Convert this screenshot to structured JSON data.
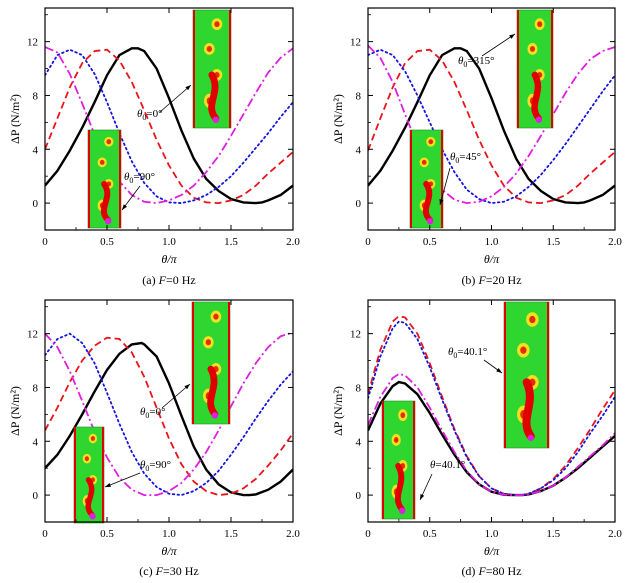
{
  "colors": {
    "black_solid": "#000000",
    "red_dash": "#e8141a",
    "blue_dot": "#1414e0",
    "magenta_dashdot": "#e01ee0",
    "inset_green": "#2fd62f",
    "inset_red": "#e00000",
    "inset_yellow": "#f0e020"
  },
  "chart_data": [
    {
      "type": "line",
      "caption": "(a) F=0 Hz",
      "xlabel": "θ/π",
      "ylabel": "ΔP (N/m²)",
      "xlim": [
        0,
        2
      ],
      "ylim": [
        -2,
        14.5
      ],
      "xticks": [
        "0",
        "0.5",
        "1.0",
        "1.5",
        "2.0"
      ],
      "yticks": [
        "0",
        "4",
        "8",
        "12"
      ],
      "annotations": [
        "θ0=0°",
        "θ0=90°"
      ],
      "series": [
        {
          "style": "solid",
          "color": "#000000",
          "x": [
            0,
            0.1,
            0.2,
            0.3,
            0.4,
            0.5,
            0.6,
            0.7,
            0.75,
            0.8,
            0.9,
            1.0,
            1.1,
            1.2,
            1.3,
            1.4,
            1.5,
            1.6,
            1.7,
            1.75,
            1.8,
            1.9,
            2.0
          ],
          "y": [
            1.3,
            2.4,
            3.9,
            5.6,
            7.5,
            9.5,
            11.0,
            11.5,
            11.5,
            11.3,
            10.0,
            7.8,
            5.4,
            3.3,
            1.8,
            0.9,
            0.3,
            0.05,
            0,
            0.05,
            0.2,
            0.6,
            1.3
          ]
        },
        {
          "style": "dashed",
          "color": "#e8141a",
          "x": [
            0,
            0.1,
            0.2,
            0.3,
            0.4,
            0.5,
            0.6,
            0.7,
            0.8,
            0.9,
            1.0,
            1.1,
            1.2,
            1.3,
            1.4,
            1.5,
            1.6,
            1.7,
            1.8,
            1.9,
            2.0
          ],
          "y": [
            4.0,
            6.3,
            8.6,
            10.4,
            11.3,
            11.4,
            10.6,
            9.0,
            6.9,
            4.7,
            2.8,
            1.3,
            0.4,
            0.05,
            0,
            0.2,
            0.6,
            1.3,
            2.2,
            3.0,
            3.8
          ]
        },
        {
          "style": "dotted",
          "color": "#1414e0",
          "x": [
            0,
            0.1,
            0.2,
            0.3,
            0.4,
            0.5,
            0.6,
            0.7,
            0.8,
            0.9,
            1.0,
            1.1,
            1.2,
            1.3,
            1.4,
            1.5,
            1.6,
            1.7,
            1.8,
            1.9,
            2.0
          ],
          "y": [
            9.5,
            11.0,
            11.4,
            11.0,
            9.6,
            7.5,
            5.2,
            3.1,
            1.5,
            0.5,
            0.05,
            0,
            0.2,
            0.6,
            1.2,
            2.0,
            3.0,
            4.1,
            5.2,
            6.4,
            7.5
          ]
        },
        {
          "style": "dashdot",
          "color": "#e01ee0",
          "x": [
            0,
            0.1,
            0.2,
            0.3,
            0.4,
            0.5,
            0.6,
            0.7,
            0.8,
            0.9,
            1.0,
            1.1,
            1.2,
            1.3,
            1.4,
            1.5,
            1.6,
            1.7,
            1.8,
            1.9,
            2.0
          ],
          "y": [
            11.6,
            11.2,
            9.6,
            7.4,
            5.1,
            3.1,
            1.6,
            0.6,
            0.1,
            0,
            0.2,
            0.6,
            1.3,
            2.3,
            3.5,
            5.0,
            6.6,
            8.2,
            9.7,
            10.8,
            11.5
          ]
        }
      ]
    },
    {
      "type": "line",
      "caption": "(b) F=20 Hz",
      "xlabel": "θ/π",
      "ylabel": "ΔP (N/m²)",
      "xlim": [
        0,
        2
      ],
      "ylim": [
        -2,
        14.5
      ],
      "xticks": [
        "0",
        "0.5",
        "1.0",
        "1.5",
        "2.0"
      ],
      "yticks": [
        "0",
        "4",
        "8",
        "12"
      ],
      "annotations": [
        "θ0=315°",
        "θ0=45°"
      ],
      "series": [
        {
          "style": "solid",
          "color": "#000000",
          "x": [
            0,
            0.1,
            0.2,
            0.3,
            0.4,
            0.5,
            0.6,
            0.7,
            0.75,
            0.8,
            0.9,
            1.0,
            1.1,
            1.2,
            1.3,
            1.4,
            1.5,
            1.6,
            1.7,
            1.75,
            1.8,
            1.9,
            2.0
          ],
          "y": [
            1.3,
            2.4,
            3.9,
            5.6,
            7.5,
            9.5,
            11.0,
            11.5,
            11.5,
            11.3,
            10.0,
            7.8,
            5.4,
            3.3,
            1.8,
            0.9,
            0.3,
            0.05,
            0,
            0.05,
            0.2,
            0.6,
            1.3
          ]
        },
        {
          "style": "dashed",
          "color": "#e8141a",
          "x": [
            0,
            0.1,
            0.2,
            0.3,
            0.4,
            0.5,
            0.6,
            0.7,
            0.8,
            0.9,
            1.0,
            1.1,
            1.2,
            1.3,
            1.4,
            1.5,
            1.6,
            1.7,
            1.8,
            1.9,
            2.0
          ],
          "y": [
            3.9,
            6.3,
            8.6,
            10.4,
            11.3,
            11.4,
            10.6,
            9.0,
            6.9,
            4.7,
            2.8,
            1.3,
            0.4,
            0.05,
            0,
            0.2,
            0.6,
            1.3,
            2.2,
            3.0,
            3.8
          ]
        },
        {
          "style": "dotted",
          "color": "#1414e0",
          "x": [
            0,
            0.1,
            0.2,
            0.3,
            0.4,
            0.5,
            0.6,
            0.7,
            0.8,
            0.9,
            1.0,
            1.1,
            1.2,
            1.3,
            1.4,
            1.5,
            1.6,
            1.7,
            1.8,
            1.9,
            2.0
          ],
          "y": [
            11.0,
            11.4,
            11.0,
            9.8,
            8.0,
            6.0,
            4.0,
            2.3,
            1.0,
            0.3,
            0,
            0.1,
            0.5,
            1.2,
            2.1,
            3.2,
            4.4,
            5.7,
            7.0,
            8.3,
            9.5
          ]
        },
        {
          "style": "dashdot",
          "color": "#e01ee0",
          "x": [
            0,
            0.1,
            0.2,
            0.3,
            0.4,
            0.5,
            0.6,
            0.7,
            0.8,
            0.9,
            1.0,
            1.1,
            1.2,
            1.3,
            1.4,
            1.5,
            1.6,
            1.7,
            1.8,
            1.9,
            2.0
          ],
          "y": [
            11.7,
            10.8,
            9.0,
            6.6,
            4.3,
            2.4,
            1.0,
            0.25,
            0,
            0.1,
            0.5,
            1.2,
            2.2,
            3.5,
            5.0,
            6.6,
            8.2,
            9.6,
            10.7,
            11.3,
            11.6
          ]
        }
      ]
    },
    {
      "type": "line",
      "caption": "(c) F=30 Hz",
      "xlabel": "θ/π",
      "ylabel": "ΔP (N/m²)",
      "xlim": [
        0,
        2
      ],
      "ylim": [
        -2,
        14.5
      ],
      "xticks": [
        "0",
        "0.5",
        "1.0",
        "1.5",
        "2.0"
      ],
      "yticks": [
        "0",
        "4",
        "8",
        "12"
      ],
      "annotations": [
        "θ0=0°",
        "θ0=90°"
      ],
      "series": [
        {
          "style": "solid",
          "color": "#000000",
          "x": [
            0,
            0.1,
            0.2,
            0.3,
            0.4,
            0.5,
            0.6,
            0.7,
            0.78,
            0.8,
            0.9,
            1.0,
            1.1,
            1.2,
            1.3,
            1.4,
            1.5,
            1.6,
            1.65,
            1.7,
            1.8,
            1.9,
            2.0
          ],
          "y": [
            2.0,
            3.0,
            4.4,
            6.0,
            7.7,
            9.3,
            10.5,
            11.2,
            11.3,
            11.2,
            10.3,
            8.3,
            5.9,
            3.6,
            1.9,
            0.8,
            0.2,
            0,
            0,
            0.05,
            0.4,
            1.0,
            1.9
          ]
        },
        {
          "style": "dashed",
          "color": "#e8141a",
          "x": [
            0,
            0.1,
            0.2,
            0.3,
            0.4,
            0.5,
            0.6,
            0.7,
            0.8,
            0.9,
            1.0,
            1.1,
            1.2,
            1.3,
            1.4,
            1.5,
            1.6,
            1.7,
            1.8,
            1.9,
            2.0
          ],
          "y": [
            4.8,
            6.5,
            8.4,
            10.0,
            11.1,
            11.7,
            11.6,
            10.6,
            8.8,
            6.5,
            4.2,
            2.3,
            1.0,
            0.3,
            0,
            0.1,
            0.5,
            1.2,
            2.2,
            3.3,
            4.6
          ]
        },
        {
          "style": "dotted",
          "color": "#1414e0",
          "x": [
            0,
            0.1,
            0.2,
            0.3,
            0.4,
            0.5,
            0.6,
            0.7,
            0.8,
            0.9,
            1.0,
            1.1,
            1.2,
            1.3,
            1.4,
            1.5,
            1.6,
            1.7,
            1.8,
            1.9,
            2.0
          ],
          "y": [
            10.4,
            11.6,
            12.0,
            11.3,
            9.8,
            7.6,
            5.3,
            3.2,
            1.6,
            0.6,
            0.1,
            0,
            0.3,
            0.9,
            1.8,
            3.0,
            4.3,
            5.7,
            7.0,
            8.2,
            9.2
          ]
        },
        {
          "style": "dashdot",
          "color": "#e01ee0",
          "x": [
            0,
            0.1,
            0.2,
            0.3,
            0.4,
            0.5,
            0.6,
            0.7,
            0.8,
            0.9,
            1.0,
            1.1,
            1.2,
            1.3,
            1.4,
            1.5,
            1.6,
            1.7,
            1.8,
            1.9,
            2.0
          ],
          "y": [
            12.0,
            11.0,
            9.2,
            7.0,
            4.7,
            2.8,
            1.3,
            0.4,
            0,
            0,
            0.3,
            0.9,
            1.9,
            3.2,
            4.8,
            6.6,
            8.3,
            9.8,
            11.0,
            11.8,
            12.1
          ]
        }
      ]
    },
    {
      "type": "line",
      "caption": "(d) F=80 Hz",
      "xlabel": "θ/π",
      "ylabel": "ΔP (N/m²)",
      "xlim": [
        0,
        2
      ],
      "ylim": [
        -2,
        14.5
      ],
      "xticks": [
        "0",
        "0.5",
        "1.0",
        "1.5",
        "2.0"
      ],
      "yticks": [
        "0",
        "4",
        "8",
        "12"
      ],
      "annotations": [
        "θ0=40.1°",
        "θ=40.1°"
      ],
      "series": [
        {
          "style": "solid",
          "color": "#000000",
          "x": [
            0,
            0.1,
            0.2,
            0.25,
            0.3,
            0.4,
            0.5,
            0.6,
            0.7,
            0.8,
            0.9,
            1.0,
            1.1,
            1.2,
            1.25,
            1.3,
            1.4,
            1.5,
            1.6,
            1.7,
            1.8,
            1.9,
            2.0
          ],
          "y": [
            4.8,
            6.8,
            8.1,
            8.4,
            8.3,
            7.5,
            6.1,
            4.5,
            3.0,
            1.7,
            0.8,
            0.25,
            0.02,
            0,
            0,
            0.05,
            0.3,
            0.7,
            1.3,
            2.0,
            2.8,
            3.6,
            4.4
          ]
        },
        {
          "style": "dashed",
          "color": "#e8141a",
          "x": [
            0,
            0.1,
            0.2,
            0.25,
            0.3,
            0.4,
            0.5,
            0.6,
            0.7,
            0.8,
            0.9,
            1.0,
            1.1,
            1.2,
            1.25,
            1.3,
            1.4,
            1.5,
            1.6,
            1.7,
            1.8,
            1.9,
            2.0
          ],
          "y": [
            7.5,
            10.8,
            12.9,
            13.3,
            13.2,
            12.0,
            9.8,
            7.3,
            4.9,
            2.9,
            1.4,
            0.5,
            0.1,
            0,
            0,
            0.1,
            0.5,
            1.2,
            2.2,
            3.5,
            4.9,
            6.4,
            7.8
          ]
        },
        {
          "style": "dotted",
          "color": "#1414e0",
          "x": [
            0,
            0.1,
            0.2,
            0.25,
            0.3,
            0.4,
            0.5,
            0.6,
            0.7,
            0.8,
            0.9,
            1.0,
            1.1,
            1.2,
            1.25,
            1.3,
            1.4,
            1.5,
            1.6,
            1.7,
            1.8,
            1.9,
            2.0
          ],
          "y": [
            7.2,
            10.3,
            12.4,
            12.9,
            12.8,
            11.6,
            9.5,
            7.1,
            4.8,
            2.8,
            1.4,
            0.5,
            0.1,
            0,
            0,
            0.1,
            0.5,
            1.1,
            2.0,
            3.2,
            4.6,
            5.9,
            7.3
          ]
        },
        {
          "style": "dashdot",
          "color": "#e01ee0",
          "x": [
            0,
            0.1,
            0.2,
            0.25,
            0.3,
            0.4,
            0.5,
            0.6,
            0.7,
            0.8,
            0.9,
            1.0,
            1.1,
            1.2,
            1.25,
            1.3,
            1.4,
            1.5,
            1.6,
            1.7,
            1.8,
            1.9,
            2.0
          ],
          "y": [
            5.2,
            7.3,
            8.7,
            9.0,
            8.9,
            8.0,
            6.5,
            4.8,
            3.2,
            1.8,
            0.8,
            0.25,
            0.02,
            0,
            0,
            0.05,
            0.3,
            0.7,
            1.3,
            2.1,
            2.9,
            3.7,
            4.6
          ]
        }
      ]
    }
  ]
}
